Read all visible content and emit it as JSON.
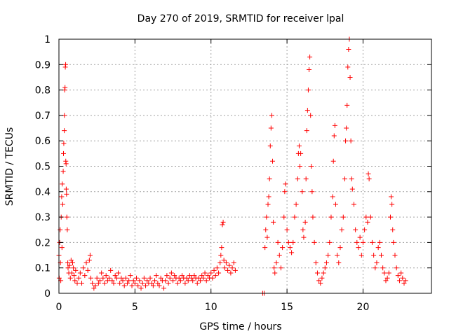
{
  "chart_data": {
    "type": "scatter",
    "title": "Day 270 of 2019, SRMTID for receiver lpal",
    "xlabel": "GPS time / hours",
    "ylabel": "SRMTID / TECUs",
    "xlim": [
      0,
      24.5
    ],
    "ylim": [
      0,
      1
    ],
    "xticks": [
      0,
      5,
      10,
      15,
      20
    ],
    "xtick_labels": [
      "0",
      "5",
      "10",
      "15",
      "20"
    ],
    "yticks": [
      0,
      0.1,
      0.2,
      0.3,
      0.4,
      0.5,
      0.6,
      0.7,
      0.8,
      0.9,
      1
    ],
    "ytick_labels": [
      "0",
      "0.1",
      "0.2",
      "0.3",
      "0.4",
      "0.5",
      "0.6",
      "0.7",
      "0.8",
      "0.9",
      "1"
    ],
    "grid": true,
    "marker": "+",
    "series": [
      {
        "name": "SRMTID",
        "color": "#ff0000",
        "points": [
          [
            0.0,
            0.15
          ],
          [
            0.02,
            0.06
          ],
          [
            0.05,
            0.2
          ],
          [
            0.08,
            0.25
          ],
          [
            0.1,
            0.12
          ],
          [
            0.12,
            0.05
          ],
          [
            0.15,
            0.3
          ],
          [
            0.18,
            0.38
          ],
          [
            0.2,
            0.18
          ],
          [
            0.22,
            0.43
          ],
          [
            0.25,
            0.35
          ],
          [
            0.28,
            0.48
          ],
          [
            0.3,
            0.55
          ],
          [
            0.32,
            0.59
          ],
          [
            0.35,
            0.64
          ],
          [
            0.36,
            0.7
          ],
          [
            0.38,
            0.8
          ],
          [
            0.4,
            0.81
          ],
          [
            0.42,
            0.89
          ],
          [
            0.44,
            0.9
          ],
          [
            0.45,
            0.52
          ],
          [
            0.47,
            0.51
          ],
          [
            0.48,
            0.41
          ],
          [
            0.5,
            0.39
          ],
          [
            0.52,
            0.3
          ],
          [
            0.55,
            0.25
          ],
          [
            0.58,
            0.12
          ],
          [
            0.6,
            0.1
          ],
          [
            0.65,
            0.08
          ],
          [
            0.7,
            0.11
          ],
          [
            0.75,
            0.06
          ],
          [
            0.8,
            0.13
          ],
          [
            0.85,
            0.08
          ],
          [
            0.9,
            0.12
          ],
          [
            0.95,
            0.1
          ],
          [
            1.0,
            0.07
          ],
          [
            1.05,
            0.05
          ],
          [
            1.1,
            0.09
          ],
          [
            1.2,
            0.04
          ],
          [
            1.3,
            0.06
          ],
          [
            1.4,
            0.08
          ],
          [
            1.5,
            0.04
          ],
          [
            1.6,
            0.1
          ],
          [
            1.7,
            0.07
          ],
          [
            1.8,
            0.12
          ],
          [
            1.9,
            0.09
          ],
          [
            2.0,
            0.13
          ],
          [
            2.05,
            0.15
          ],
          [
            2.1,
            0.06
          ],
          [
            2.2,
            0.04
          ],
          [
            2.3,
            0.02
          ],
          [
            2.4,
            0.03
          ],
          [
            2.5,
            0.06
          ],
          [
            2.6,
            0.04
          ],
          [
            2.7,
            0.05
          ],
          [
            2.8,
            0.08
          ],
          [
            2.9,
            0.06
          ],
          [
            3.0,
            0.04
          ],
          [
            3.1,
            0.07
          ],
          [
            3.2,
            0.05
          ],
          [
            3.3,
            0.06
          ],
          [
            3.4,
            0.09
          ],
          [
            3.5,
            0.05
          ],
          [
            3.6,
            0.04
          ],
          [
            3.7,
            0.07
          ],
          [
            3.8,
            0.06
          ],
          [
            3.9,
            0.08
          ],
          [
            4.0,
            0.04
          ],
          [
            4.1,
            0.06
          ],
          [
            4.2,
            0.05
          ],
          [
            4.3,
            0.03
          ],
          [
            4.4,
            0.06
          ],
          [
            4.5,
            0.04
          ],
          [
            4.6,
            0.05
          ],
          [
            4.7,
            0.07
          ],
          [
            4.8,
            0.03
          ],
          [
            4.9,
            0.05
          ],
          [
            5.0,
            0.04
          ],
          [
            5.1,
            0.06
          ],
          [
            5.2,
            0.03
          ],
          [
            5.3,
            0.05
          ],
          [
            5.4,
            0.02
          ],
          [
            5.5,
            0.04
          ],
          [
            5.6,
            0.06
          ],
          [
            5.7,
            0.03
          ],
          [
            5.8,
            0.05
          ],
          [
            5.9,
            0.04
          ],
          [
            6.0,
            0.06
          ],
          [
            6.1,
            0.04
          ],
          [
            6.2,
            0.03
          ],
          [
            6.3,
            0.05
          ],
          [
            6.4,
            0.07
          ],
          [
            6.5,
            0.04
          ],
          [
            6.6,
            0.03
          ],
          [
            6.7,
            0.06
          ],
          [
            6.8,
            0.05
          ],
          [
            6.9,
            0.02
          ],
          [
            7.0,
            0.05
          ],
          [
            7.1,
            0.07
          ],
          [
            7.2,
            0.04
          ],
          [
            7.3,
            0.06
          ],
          [
            7.4,
            0.08
          ],
          [
            7.5,
            0.05
          ],
          [
            7.6,
            0.07
          ],
          [
            7.7,
            0.06
          ],
          [
            7.8,
            0.04
          ],
          [
            7.9,
            0.06
          ],
          [
            8.0,
            0.05
          ],
          [
            8.1,
            0.07
          ],
          [
            8.2,
            0.06
          ],
          [
            8.3,
            0.04
          ],
          [
            8.4,
            0.06
          ],
          [
            8.5,
            0.05
          ],
          [
            8.6,
            0.07
          ],
          [
            8.7,
            0.06
          ],
          [
            8.8,
            0.05
          ],
          [
            8.9,
            0.07
          ],
          [
            9.0,
            0.06
          ],
          [
            9.1,
            0.04
          ],
          [
            9.2,
            0.06
          ],
          [
            9.3,
            0.05
          ],
          [
            9.4,
            0.07
          ],
          [
            9.5,
            0.06
          ],
          [
            9.6,
            0.08
          ],
          [
            9.7,
            0.05
          ],
          [
            9.8,
            0.07
          ],
          [
            9.9,
            0.06
          ],
          [
            10.0,
            0.08
          ],
          [
            10.1,
            0.06
          ],
          [
            10.2,
            0.09
          ],
          [
            10.3,
            0.07
          ],
          [
            10.4,
            0.1
          ],
          [
            10.5,
            0.08
          ],
          [
            10.6,
            0.12
          ],
          [
            10.65,
            0.15
          ],
          [
            10.7,
            0.18
          ],
          [
            10.75,
            0.27
          ],
          [
            10.8,
            0.28
          ],
          [
            10.85,
            0.13
          ],
          [
            10.9,
            0.1
          ],
          [
            11.0,
            0.12
          ],
          [
            11.1,
            0.09
          ],
          [
            11.2,
            0.11
          ],
          [
            11.3,
            0.08
          ],
          [
            11.4,
            0.1
          ],
          [
            11.5,
            0.12
          ],
          [
            11.6,
            0.09
          ],
          [
            13.4,
            0.0
          ],
          [
            13.5,
            0.0
          ],
          [
            13.55,
            0.18
          ],
          [
            13.6,
            0.25
          ],
          [
            13.65,
            0.3
          ],
          [
            13.7,
            0.22
          ],
          [
            13.75,
            0.35
          ],
          [
            13.8,
            0.38
          ],
          [
            13.85,
            0.45
          ],
          [
            13.9,
            0.58
          ],
          [
            13.95,
            0.65
          ],
          [
            14.0,
            0.7
          ],
          [
            14.05,
            0.52
          ],
          [
            14.1,
            0.28
          ],
          [
            14.15,
            0.1
          ],
          [
            14.2,
            0.08
          ],
          [
            14.3,
            0.12
          ],
          [
            14.4,
            0.2
          ],
          [
            14.5,
            0.15
          ],
          [
            14.6,
            0.1
          ],
          [
            14.7,
            0.18
          ],
          [
            14.8,
            0.3
          ],
          [
            14.85,
            0.4
          ],
          [
            14.9,
            0.43
          ],
          [
            15.0,
            0.25
          ],
          [
            15.1,
            0.2
          ],
          [
            15.2,
            0.18
          ],
          [
            15.3,
            0.16
          ],
          [
            15.4,
            0.2
          ],
          [
            15.5,
            0.3
          ],
          [
            15.6,
            0.35
          ],
          [
            15.7,
            0.45
          ],
          [
            15.75,
            0.55
          ],
          [
            15.8,
            0.58
          ],
          [
            15.85,
            0.5
          ],
          [
            15.9,
            0.55
          ],
          [
            16.0,
            0.4
          ],
          [
            16.05,
            0.25
          ],
          [
            16.1,
            0.22
          ],
          [
            16.2,
            0.28
          ],
          [
            16.25,
            0.45
          ],
          [
            16.3,
            0.64
          ],
          [
            16.35,
            0.72
          ],
          [
            16.4,
            0.8
          ],
          [
            16.45,
            0.88
          ],
          [
            16.5,
            0.93
          ],
          [
            16.55,
            0.7
          ],
          [
            16.6,
            0.5
          ],
          [
            16.65,
            0.4
          ],
          [
            16.7,
            0.3
          ],
          [
            16.8,
            0.2
          ],
          [
            16.9,
            0.12
          ],
          [
            17.0,
            0.08
          ],
          [
            17.1,
            0.05
          ],
          [
            17.2,
            0.04
          ],
          [
            17.3,
            0.06
          ],
          [
            17.4,
            0.08
          ],
          [
            17.5,
            0.1
          ],
          [
            17.6,
            0.12
          ],
          [
            17.7,
            0.15
          ],
          [
            17.8,
            0.2
          ],
          [
            17.9,
            0.3
          ],
          [
            18.0,
            0.38
          ],
          [
            18.05,
            0.52
          ],
          [
            18.1,
            0.62
          ],
          [
            18.15,
            0.66
          ],
          [
            18.2,
            0.35
          ],
          [
            18.3,
            0.15
          ],
          [
            18.4,
            0.12
          ],
          [
            18.5,
            0.18
          ],
          [
            18.6,
            0.25
          ],
          [
            18.7,
            0.3
          ],
          [
            18.8,
            0.45
          ],
          [
            18.85,
            0.6
          ],
          [
            18.9,
            0.65
          ],
          [
            18.95,
            0.74
          ],
          [
            19.0,
            0.89
          ],
          [
            19.05,
            0.96
          ],
          [
            19.1,
            1.0
          ],
          [
            19.15,
            0.85
          ],
          [
            19.2,
            0.6
          ],
          [
            19.25,
            0.45
          ],
          [
            19.3,
            0.41
          ],
          [
            19.4,
            0.35
          ],
          [
            19.5,
            0.25
          ],
          [
            19.6,
            0.2
          ],
          [
            19.7,
            0.18
          ],
          [
            19.8,
            0.22
          ],
          [
            19.9,
            0.15
          ],
          [
            20.0,
            0.2
          ],
          [
            20.1,
            0.25
          ],
          [
            20.2,
            0.3
          ],
          [
            20.3,
            0.28
          ],
          [
            20.35,
            0.47
          ],
          [
            20.4,
            0.45
          ],
          [
            20.5,
            0.3
          ],
          [
            20.6,
            0.2
          ],
          [
            20.7,
            0.15
          ],
          [
            20.8,
            0.1
          ],
          [
            20.9,
            0.12
          ],
          [
            21.0,
            0.18
          ],
          [
            21.1,
            0.2
          ],
          [
            21.2,
            0.15
          ],
          [
            21.3,
            0.1
          ],
          [
            21.4,
            0.08
          ],
          [
            21.5,
            0.05
          ],
          [
            21.6,
            0.06
          ],
          [
            21.7,
            0.08
          ],
          [
            21.8,
            0.3
          ],
          [
            21.85,
            0.38
          ],
          [
            21.9,
            0.35
          ],
          [
            21.95,
            0.25
          ],
          [
            22.0,
            0.2
          ],
          [
            22.1,
            0.15
          ],
          [
            22.2,
            0.1
          ],
          [
            22.3,
            0.07
          ],
          [
            22.4,
            0.05
          ],
          [
            22.5,
            0.08
          ],
          [
            22.6,
            0.06
          ],
          [
            22.7,
            0.04
          ],
          [
            22.8,
            0.05
          ]
        ]
      }
    ]
  }
}
